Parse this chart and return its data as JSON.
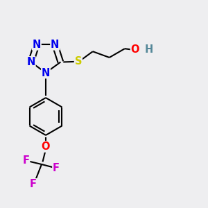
{
  "bg_color": "#eeeef0",
  "atom_colors": {
    "N": "#0000ee",
    "S": "#cccc00",
    "O": "#ff0000",
    "F": "#cc00cc",
    "H": "#558899",
    "C": "#000000"
  },
  "bond_color": "#000000",
  "lw": 1.5,
  "dbo": 0.013,
  "fs": 10.5
}
